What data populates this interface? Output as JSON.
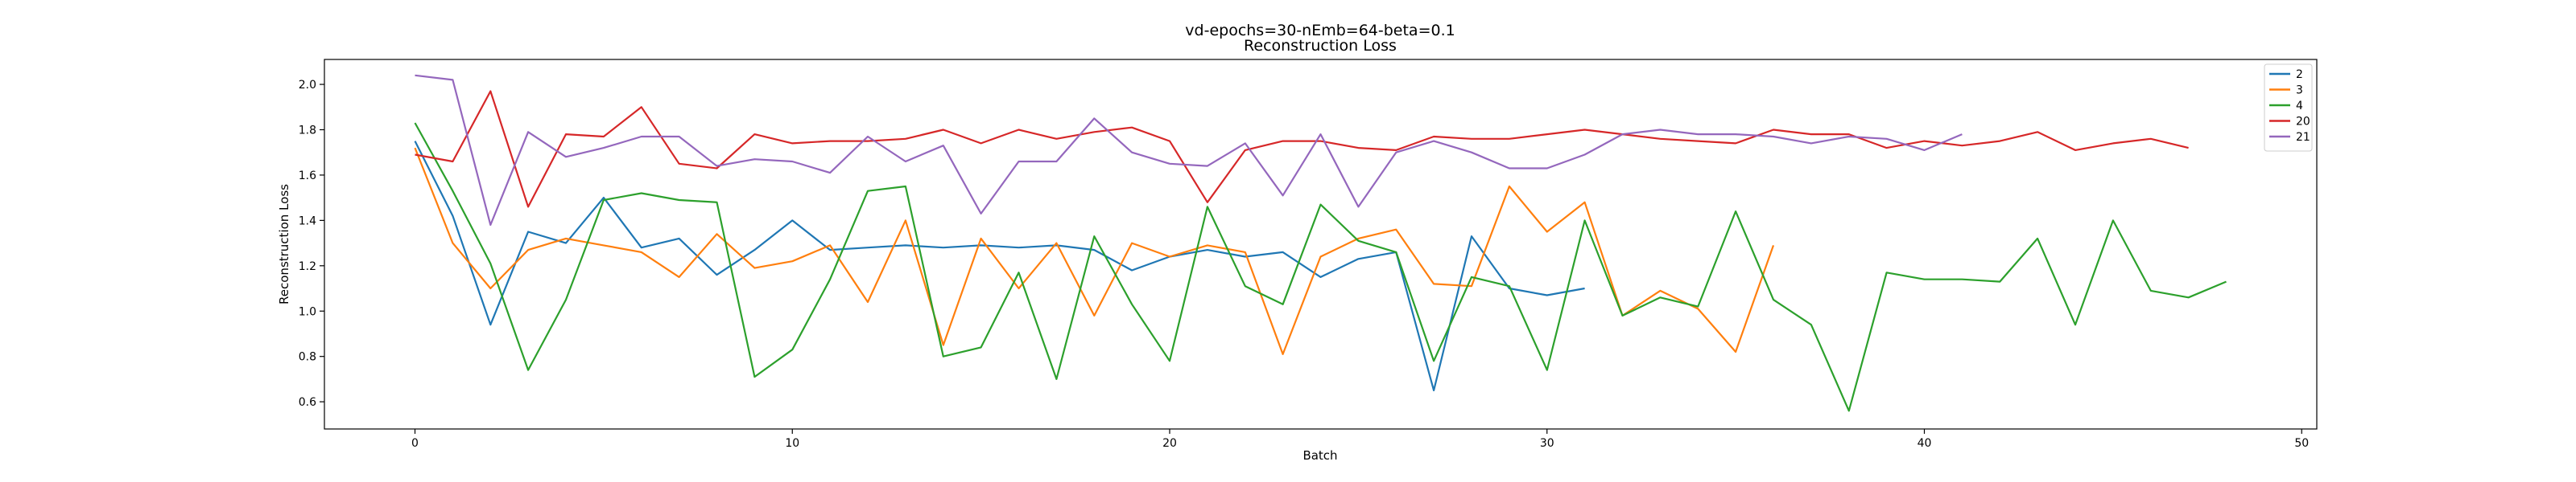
{
  "chart_data": {
    "type": "line",
    "title": "vd-epochs=30-nEmb=64-beta=0.1",
    "subtitle": "Reconstruction Loss",
    "xlabel": "Batch",
    "ylabel": "Reconstruction Loss",
    "xlim": [
      -2.4,
      50.4
    ],
    "ylim": [
      0.48,
      2.11
    ],
    "xticks": [
      0,
      10,
      20,
      30,
      40,
      50
    ],
    "yticks": [
      0.6,
      0.8,
      1.0,
      1.2,
      1.4,
      1.6,
      1.8,
      2.0
    ],
    "xtick_labels": [
      "0",
      "10",
      "20",
      "30",
      "40",
      "50"
    ],
    "ytick_labels": [
      "0.6",
      "0.8",
      "1.0",
      "1.2",
      "1.4",
      "1.6",
      "1.8",
      "2.0"
    ],
    "grid": false,
    "legend_position": "top-right",
    "series": [
      {
        "name": "2",
        "color": "#1f77b4",
        "values": [
          1.75,
          1.42,
          0.94,
          1.35,
          1.3,
          1.5,
          1.28,
          1.32,
          1.16,
          1.27,
          1.4,
          1.27,
          1.28,
          1.29,
          1.28,
          1.29,
          1.28,
          1.29,
          1.27,
          1.18,
          1.24,
          1.27,
          1.24,
          1.26,
          1.15,
          1.23,
          1.26,
          0.65,
          1.33,
          1.1,
          1.07,
          1.1
        ]
      },
      {
        "name": "3",
        "color": "#ff7f0e",
        "values": [
          1.72,
          1.3,
          1.1,
          1.27,
          1.32,
          1.29,
          1.26,
          1.15,
          1.34,
          1.19,
          1.22,
          1.29,
          1.04,
          1.4,
          0.85,
          1.32,
          1.1,
          1.3,
          0.98,
          1.3,
          1.24,
          1.29,
          1.26,
          0.81,
          1.24,
          1.32,
          1.36,
          1.12,
          1.11,
          1.55,
          1.35,
          1.48,
          0.98,
          1.09,
          1.01,
          0.82,
          1.29
        ]
      },
      {
        "name": "4",
        "color": "#2ca02c",
        "values": [
          1.83,
          1.53,
          1.21,
          0.74,
          1.05,
          1.49,
          1.52,
          1.49,
          1.48,
          0.71,
          0.83,
          1.14,
          1.53,
          1.55,
          0.8,
          0.84,
          1.17,
          0.7,
          1.33,
          1.03,
          0.78,
          1.46,
          1.11,
          1.03,
          1.47,
          1.31,
          1.26,
          0.78,
          1.15,
          1.11,
          0.74,
          1.4,
          0.98,
          1.06,
          1.02,
          1.44,
          1.05,
          0.94,
          0.56,
          1.17,
          1.14,
          1.14,
          1.13,
          1.32,
          0.94,
          1.4,
          1.09,
          1.06,
          1.13
        ]
      },
      {
        "name": "20",
        "color": "#d62728",
        "values": [
          1.69,
          1.66,
          1.97,
          1.46,
          1.78,
          1.77,
          1.9,
          1.65,
          1.63,
          1.78,
          1.74,
          1.75,
          1.75,
          1.76,
          1.8,
          1.74,
          1.8,
          1.76,
          1.79,
          1.81,
          1.75,
          1.48,
          1.71,
          1.75,
          1.75,
          1.72,
          1.71,
          1.77,
          1.76,
          1.76,
          1.78,
          1.8,
          1.78,
          1.76,
          1.75,
          1.74,
          1.8,
          1.78,
          1.78,
          1.72,
          1.75,
          1.73,
          1.75,
          1.79,
          1.71,
          1.74,
          1.76,
          1.72
        ]
      },
      {
        "name": "21",
        "color": "#9467bd",
        "values": [
          2.04,
          2.02,
          1.38,
          1.79,
          1.68,
          1.72,
          1.77,
          1.77,
          1.64,
          1.67,
          1.66,
          1.61,
          1.77,
          1.66,
          1.73,
          1.43,
          1.66,
          1.66,
          1.85,
          1.7,
          1.65,
          1.64,
          1.74,
          1.51,
          1.78,
          1.46,
          1.7,
          1.75,
          1.7,
          1.63,
          1.63,
          1.69,
          1.78,
          1.8,
          1.78,
          1.78,
          1.77,
          1.74,
          1.77,
          1.76,
          1.71,
          1.78
        ]
      }
    ]
  }
}
